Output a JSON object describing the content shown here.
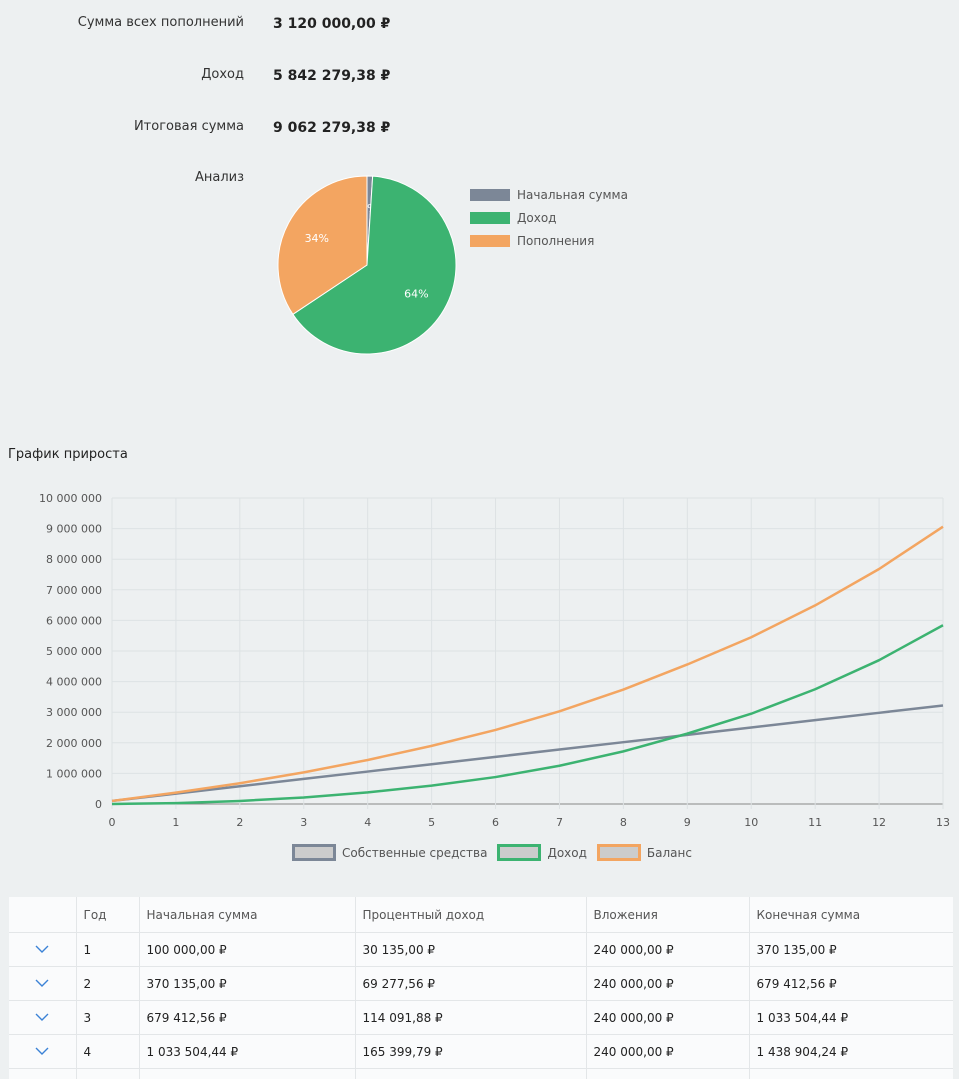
{
  "summary": {
    "deposits_label": "Сумма всех пополнений",
    "deposits_value": "3 120 000,00 ₽",
    "income_label": "Доход",
    "income_value": "5 842 279,38 ₽",
    "total_label": "Итоговая сумма",
    "total_value": "9 062 279,38 ₽",
    "analysis_label": "Анализ"
  },
  "colors": {
    "initial": "#7c8797",
    "income": "#3cb371",
    "deposits": "#f3a561",
    "accent": "#3b82d6"
  },
  "pie": {
    "slices": [
      {
        "label": "Начальная сумма",
        "percent": 1,
        "text": "1%"
      },
      {
        "label": "Доход",
        "percent": 64,
        "text": "64%"
      },
      {
        "label": "Пополнения",
        "percent": 34,
        "text": "34%"
      }
    ]
  },
  "growth": {
    "title": "График прироста"
  },
  "chart_data": [
    {
      "type": "pie",
      "title": "Анализ",
      "categories": [
        "Начальная сумма",
        "Доход",
        "Пополнения"
      ],
      "values": [
        1,
        64,
        34
      ],
      "legend": "right"
    },
    {
      "type": "line",
      "title": "График прироста",
      "x": [
        0,
        1,
        2,
        3,
        4,
        5,
        6,
        7,
        8,
        9,
        10,
        11,
        12,
        13
      ],
      "ylim": [
        0,
        10000000
      ],
      "yticks": [
        "0",
        "1 000 000",
        "2 000 000",
        "3 000 000",
        "4 000 000",
        "5 000 000",
        "6 000 000",
        "7 000 000",
        "8 000 000",
        "9 000 000",
        "10 000 000"
      ],
      "xticks": [
        "0",
        "1",
        "2",
        "3",
        "4",
        "5",
        "6",
        "7",
        "8",
        "9",
        "10",
        "11",
        "12",
        "13"
      ],
      "grid": true,
      "legend": "bottom",
      "series": [
        {
          "name": "Собственные средства",
          "values": [
            100000,
            340000,
            580000,
            820000,
            1060000,
            1300000,
            1540000,
            1780000,
            2020000,
            2260000,
            2500000,
            2740000,
            2980000,
            3220000
          ]
        },
        {
          "name": "Доход",
          "values": [
            0,
            30135,
            99413,
            213504,
            378904,
            600000,
            880000,
            1250000,
            1720000,
            2300000,
            2950000,
            3750000,
            4700000,
            5842279
          ]
        },
        {
          "name": "Баланс",
          "values": [
            100000,
            370135,
            679413,
            1033504,
            1438904,
            1900000,
            2420000,
            3030000,
            3740000,
            4560000,
            5450000,
            6490000,
            7680000,
            9062279
          ]
        }
      ]
    }
  ],
  "table": {
    "headers": [
      "",
      "Год",
      "Начальная сумма",
      "Процентный доход",
      "Вложения",
      "Конечная сумма"
    ],
    "rows": [
      {
        "year": "1",
        "start": "100 000,00 ₽",
        "interest": "30 135,00 ₽",
        "deposit": "240 000,00 ₽",
        "end": "370 135,00 ₽"
      },
      {
        "year": "2",
        "start": "370 135,00 ₽",
        "interest": "69 277,56 ₽",
        "deposit": "240 000,00 ₽",
        "end": "679 412,56 ₽"
      },
      {
        "year": "3",
        "start": "679 412,56 ₽",
        "interest": "114 091,88 ₽",
        "deposit": "240 000,00 ₽",
        "end": "1 033 504,44 ₽"
      },
      {
        "year": "4",
        "start": "1 033 504,44 ₽",
        "interest": "165 399,79 ₽",
        "deposit": "240 000,00 ₽",
        "end": "1 438 904,24 ₽"
      }
    ]
  }
}
